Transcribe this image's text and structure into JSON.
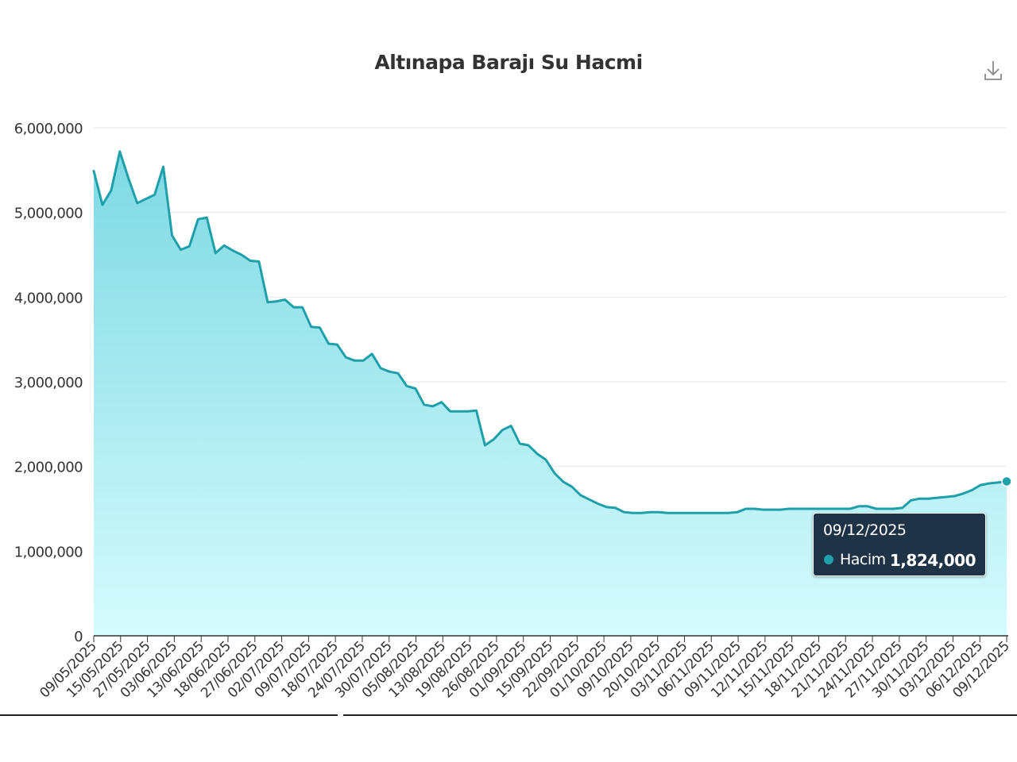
{
  "colors": {
    "line": "#1e9fa9",
    "area_top": "#7dd9e3",
    "area_bottom": "#d6fbfd",
    "grid": "#e6e6e6",
    "axis": "#333333",
    "text": "#333333",
    "tooltip_bg": "#1f3346"
  },
  "toolbar": {
    "download_icon": "download-icon"
  },
  "tooltip": {
    "date": "09/12/2025",
    "series": "Hacim",
    "value": "1,824,000"
  },
  "chart_data": {
    "type": "area",
    "title": "Altınapa Barajı Su Hacmi",
    "xlabel": "",
    "ylabel": "",
    "ylim": [
      0,
      6000000
    ],
    "grid": true,
    "legend": "none",
    "y_ticks": [
      0,
      1000000,
      2000000,
      3000000,
      4000000,
      5000000,
      6000000
    ],
    "y_tick_labels": [
      "0",
      "1,000,000",
      "2,000,000",
      "3,000,000",
      "4,000,000",
      "5,000,000",
      "6,000,000"
    ],
    "x_tick_labels": [
      "09/05/2025",
      "15/05/2025",
      "27/05/2025",
      "03/06/2025",
      "13/06/2025",
      "18/06/2025",
      "27/06/2025",
      "02/07/2025",
      "09/07/2025",
      "18/07/2025",
      "24/07/2025",
      "30/07/2025",
      "05/08/2025",
      "13/08/2025",
      "19/08/2025",
      "26/08/2025",
      "01/09/2025",
      "15/09/2025",
      "22/09/2025",
      "01/10/2025",
      "09/10/2025",
      "20/10/2025",
      "03/11/2025",
      "06/11/2025",
      "09/11/2025",
      "12/11/2025",
      "15/11/2025",
      "18/11/2025",
      "21/11/2025",
      "24/11/2025",
      "27/11/2025",
      "30/11/2025",
      "03/12/2025",
      "06/12/2025",
      "09/12/2025"
    ],
    "series": [
      {
        "name": "Hacim",
        "values": [
          5490000,
          5090000,
          5260000,
          5720000,
          5400000,
          5110000,
          5160000,
          5210000,
          5540000,
          4730000,
          4560000,
          4600000,
          4920000,
          4940000,
          4520000,
          4610000,
          4550000,
          4500000,
          4430000,
          4420000,
          3940000,
          3950000,
          3970000,
          3880000,
          3880000,
          3650000,
          3640000,
          3450000,
          3440000,
          3290000,
          3250000,
          3250000,
          3330000,
          3160000,
          3120000,
          3100000,
          2950000,
          2920000,
          2730000,
          2710000,
          2760000,
          2650000,
          2650000,
          2650000,
          2660000,
          2250000,
          2320000,
          2430000,
          2480000,
          2270000,
          2250000,
          2150000,
          2080000,
          1920000,
          1820000,
          1760000,
          1660000,
          1610000,
          1560000,
          1520000,
          1510000,
          1460000,
          1450000,
          1450000,
          1460000,
          1460000,
          1450000,
          1450000,
          1450000,
          1450000,
          1450000,
          1450000,
          1450000,
          1450000,
          1460000,
          1500000,
          1500000,
          1490000,
          1490000,
          1490000,
          1500000,
          1500000,
          1500000,
          1500000,
          1500000,
          1500000,
          1500000,
          1500000,
          1530000,
          1530000,
          1500000,
          1500000,
          1500000,
          1510000,
          1600000,
          1620000,
          1620000,
          1630000,
          1640000,
          1650000,
          1680000,
          1720000,
          1780000,
          1800000,
          1810000,
          1824000
        ]
      }
    ]
  }
}
